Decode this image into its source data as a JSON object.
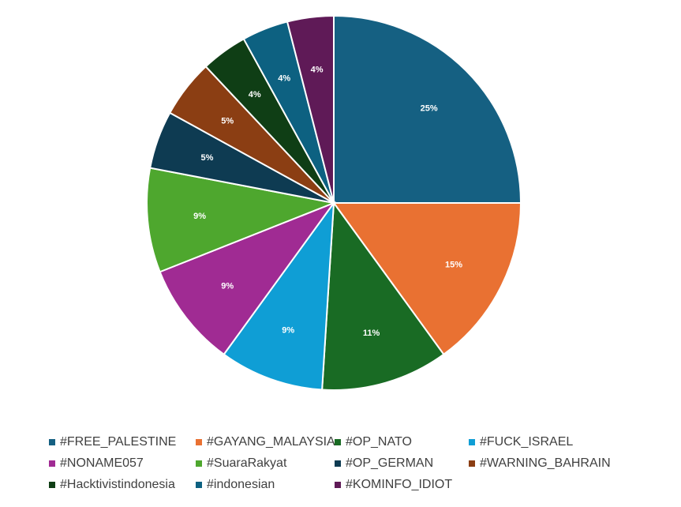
{
  "chart_data": {
    "type": "pie",
    "title": "",
    "legend_position": "bottom",
    "slices": [
      {
        "label": "#FREE_PALESTINE",
        "value": 25,
        "display": "25%",
        "color": "#156082"
      },
      {
        "label": "#GAYANG_MALAYSIA",
        "value": 15,
        "display": "15%",
        "color": "#E97132"
      },
      {
        "label": "#OP_NATO",
        "value": 11,
        "display": "11%",
        "color": "#196B24"
      },
      {
        "label": "#FUCK_ISRAEL",
        "value": 9,
        "display": "9%",
        "color": "#0F9ED5"
      },
      {
        "label": "#NONAME057",
        "value": 9,
        "display": "9%",
        "color": "#A02B93"
      },
      {
        "label": "#SuaraRakyat",
        "value": 9,
        "display": "9%",
        "color": "#4EA72E"
      },
      {
        "label": "#OP_GERMAN",
        "value": 5,
        "display": "5%",
        "color": "#0E3B52"
      },
      {
        "label": "#WARNING_BAHRAIN",
        "value": 5,
        "display": "5%",
        "color": "#8B3E13"
      },
      {
        "label": "#Hacktivistindonesia",
        "value": 4,
        "display": "4%",
        "color": "#0F3E15"
      },
      {
        "label": "#indonesian",
        "value": 4,
        "display": "4%",
        "color": "#0D6181"
      },
      {
        "label": "#KOMINFO_IDIOT",
        "value": 4,
        "display": "4%",
        "color": "#5F1A57"
      }
    ]
  }
}
